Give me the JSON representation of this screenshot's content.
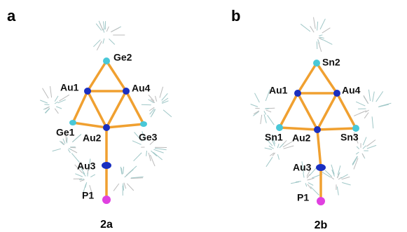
{
  "panels": [
    {
      "label": "a",
      "caption": "2a",
      "atoms": [
        "Ge2",
        "Au1",
        "Au4",
        "Ge1",
        "Au2",
        "Ge3",
        "Au3",
        "P1"
      ]
    },
    {
      "label": "b",
      "caption": "2b",
      "atoms": [
        "Sn2",
        "Au1",
        "Au4",
        "Sn1",
        "Au2",
        "Sn3",
        "Au3",
        "P1"
      ]
    }
  ]
}
